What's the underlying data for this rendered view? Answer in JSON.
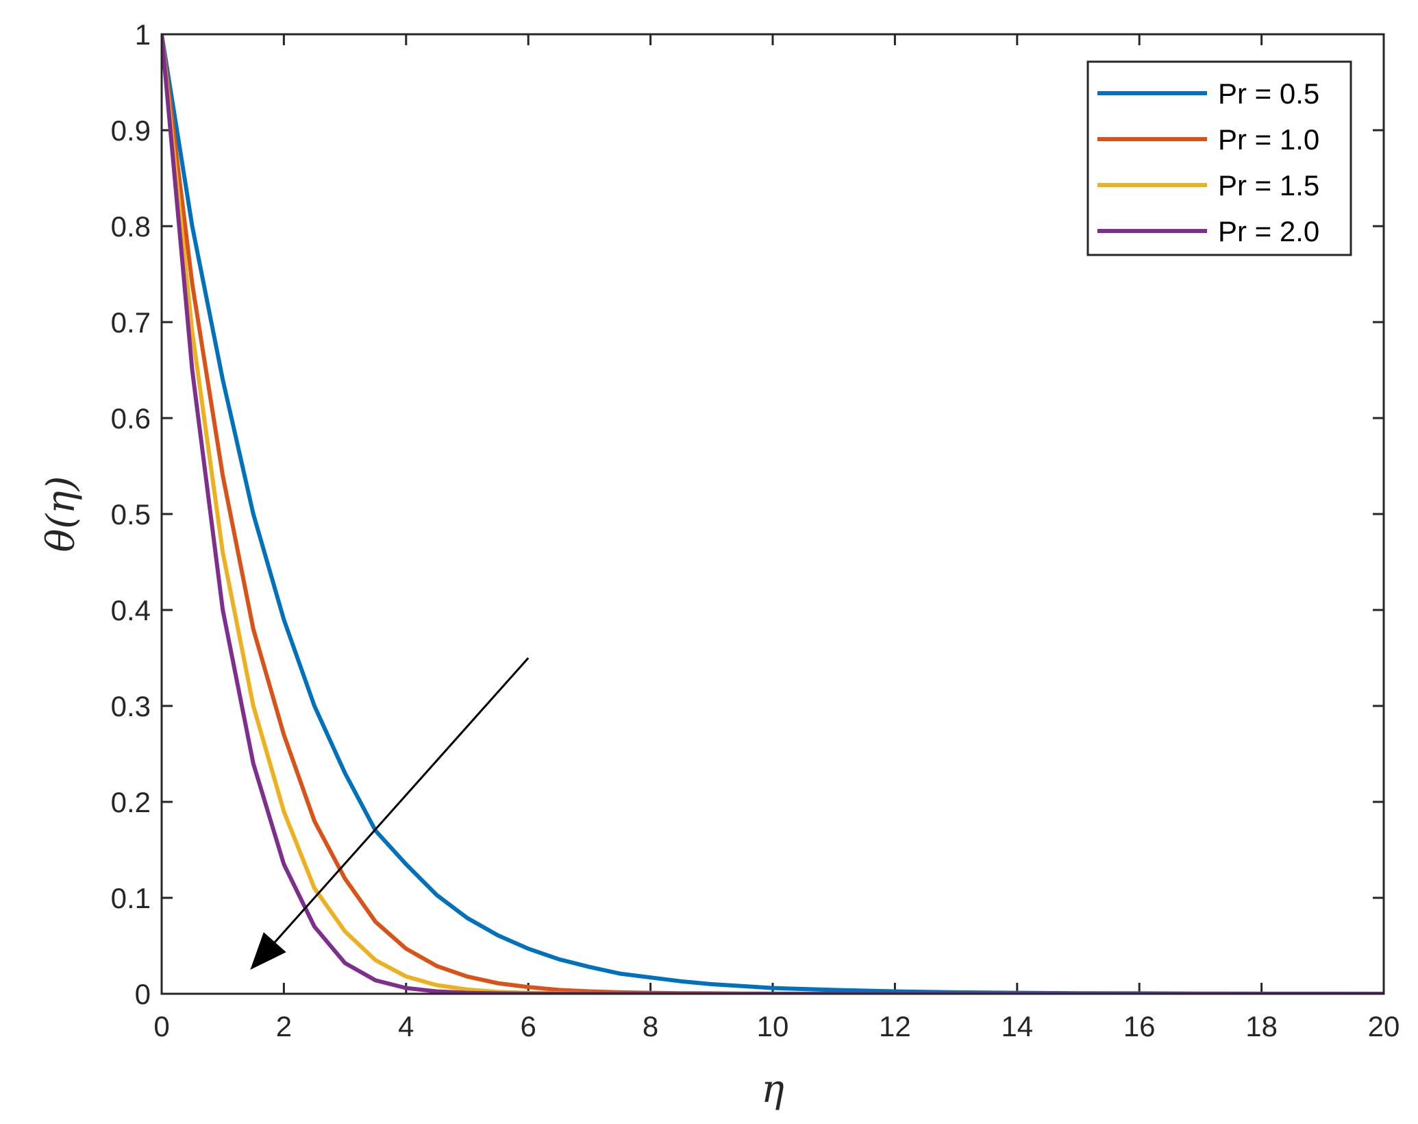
{
  "chart_data": {
    "type": "line",
    "xlabel": "η",
    "ylabel": "θ(η)",
    "xlim": [
      0,
      20
    ],
    "ylim": [
      0,
      1
    ],
    "xticks": [
      0,
      2,
      4,
      6,
      8,
      10,
      12,
      14,
      16,
      18,
      20
    ],
    "yticks": [
      0,
      0.1,
      0.2,
      0.3,
      0.4,
      0.5,
      0.6,
      0.7,
      0.8,
      0.9,
      1
    ],
    "xtick_labels": [
      "0",
      "2",
      "4",
      "6",
      "8",
      "10",
      "12",
      "14",
      "16",
      "18",
      "20"
    ],
    "ytick_labels": [
      "0",
      "0.1",
      "0.2",
      "0.3",
      "0.4",
      "0.5",
      "0.6",
      "0.7",
      "0.8",
      "0.9",
      "1"
    ],
    "grid": false,
    "legend_position": "top-right",
    "x": [
      0,
      0.5,
      1,
      1.5,
      2,
      2.5,
      3,
      3.5,
      4,
      4.5,
      5,
      5.5,
      6,
      6.5,
      7,
      7.5,
      8,
      8.5,
      9,
      9.5,
      10,
      11,
      12,
      13,
      14,
      15,
      16,
      17,
      18,
      19,
      20
    ],
    "series": [
      {
        "name": "Pr = 0.5",
        "color": "#0072BD",
        "values": [
          1.0,
          0.8,
          0.64,
          0.5,
          0.39,
          0.3,
          0.23,
          0.17,
          0.135,
          0.103,
          0.079,
          0.061,
          0.047,
          0.036,
          0.028,
          0.021,
          0.017,
          0.013,
          0.01,
          0.008,
          0.006,
          0.004,
          0.0025,
          0.0015,
          0.001,
          0.0006,
          0.0004,
          0.0002,
          0.0001,
          0.0001,
          0.0
        ]
      },
      {
        "name": "Pr = 1.0",
        "color": "#D95319",
        "values": [
          1.0,
          0.74,
          0.54,
          0.38,
          0.27,
          0.18,
          0.12,
          0.075,
          0.047,
          0.029,
          0.018,
          0.011,
          0.007,
          0.004,
          0.0025,
          0.0015,
          0.001,
          0.0006,
          0.0004,
          0.0002,
          0.0001,
          0.0,
          0.0,
          0.0,
          0.0,
          0.0,
          0.0,
          0.0,
          0.0,
          0.0,
          0.0
        ]
      },
      {
        "name": "Pr = 1.5",
        "color": "#EDB120",
        "values": [
          1.0,
          0.69,
          0.46,
          0.3,
          0.19,
          0.11,
          0.065,
          0.035,
          0.018,
          0.009,
          0.0045,
          0.002,
          0.001,
          0.0005,
          0.0002,
          0.0001,
          0.0,
          0.0,
          0.0,
          0.0,
          0.0,
          0.0,
          0.0,
          0.0,
          0.0,
          0.0,
          0.0,
          0.0,
          0.0,
          0.0,
          0.0
        ]
      },
      {
        "name": "Pr = 2.0",
        "color": "#7E2F8E",
        "values": [
          1.0,
          0.65,
          0.4,
          0.24,
          0.135,
          0.07,
          0.032,
          0.014,
          0.006,
          0.0025,
          0.001,
          0.0004,
          0.0001,
          0.0,
          0.0,
          0.0,
          0.0,
          0.0,
          0.0,
          0.0,
          0.0,
          0.0,
          0.0,
          0.0,
          0.0,
          0.0,
          0.0,
          0.0,
          0.0,
          0.0,
          0.0
        ]
      }
    ],
    "annotations": [
      {
        "type": "arrow",
        "from": [
          6.0,
          0.35
        ],
        "to": [
          1.45,
          0.025
        ]
      }
    ]
  }
}
